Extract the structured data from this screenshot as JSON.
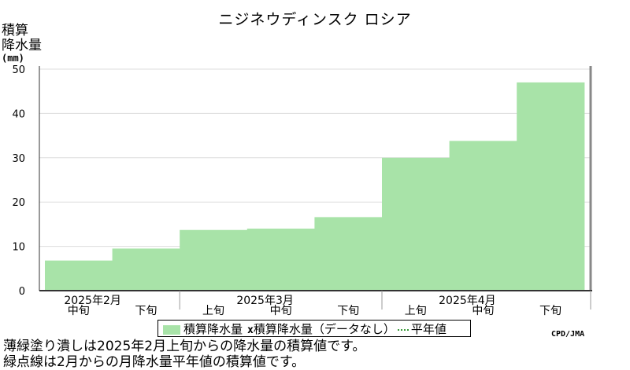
{
  "title": "ニジネウディンスク ロシア",
  "ylabel_lines": [
    "積算",
    "降水量"
  ],
  "yunit": "(mm)",
  "credit": "CPD/JMA",
  "legend": {
    "series_label": "積算降水量",
    "marker": "x",
    "missing_label": "積算降水量（データなし）",
    "normal_label": "平年値"
  },
  "notes": [
    "薄緑塗り潰しは2025年2月上旬からの降水量の積算値です。",
    "緑点線は2月からの月降水量平年値の積算値です。"
  ],
  "colors": {
    "fill": "#a8e3a8",
    "grid": "#dddddd",
    "frame": "#888888"
  },
  "chart_data": {
    "type": "area",
    "title": "ニジネウディンスク ロシア",
    "ylabel": "積算降水量(mm)",
    "ylim": [
      0,
      50
    ],
    "yticks": [
      0,
      10,
      20,
      30,
      40,
      50
    ],
    "grid": true,
    "categories": [
      "中旬",
      "下旬",
      "上旬",
      "中旬",
      "下旬",
      "上旬",
      "中旬",
      "下旬"
    ],
    "months": [
      {
        "label": "2025年2月",
        "start": 0,
        "count": 2
      },
      {
        "label": "2025年3月",
        "start": 2,
        "count": 3
      },
      {
        "label": "2025年4月",
        "start": 5,
        "count": 3
      }
    ],
    "values": [
      6.8,
      9.5,
      13.7,
      14.0,
      16.6,
      30.0,
      33.8,
      47.0
    ]
  }
}
